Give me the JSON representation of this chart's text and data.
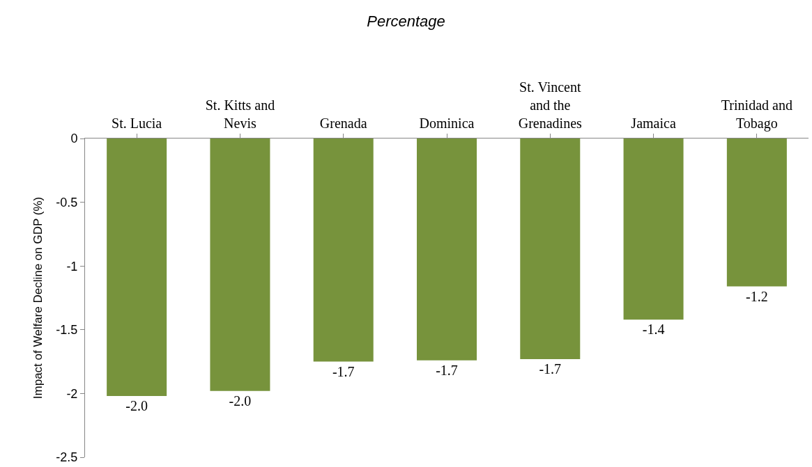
{
  "chart_data": {
    "type": "bar",
    "title": "Percentage",
    "ylabel": "Impact of Welfare Decline on GDP (%)",
    "categories": [
      "St. Lucia",
      "St. Kitts and\nNevis",
      "Grenada",
      "Dominica",
      "St. Vincent\nand the\nGrenadines",
      "Jamaica",
      "Trinidad and\nTobago"
    ],
    "values": [
      -2.02,
      -1.98,
      -1.75,
      -1.74,
      -1.73,
      -1.42,
      -1.16
    ],
    "value_labels": [
      "-2.0",
      "-2.0",
      "-1.7",
      "-1.7",
      "-1.7",
      "-1.4",
      "-1.2"
    ],
    "color": "#77933c",
    "ylim": [
      -2.5,
      0
    ],
    "yticks": [
      0,
      -0.5,
      -1,
      -1.5,
      -2,
      -2.5
    ],
    "legend": false
  }
}
